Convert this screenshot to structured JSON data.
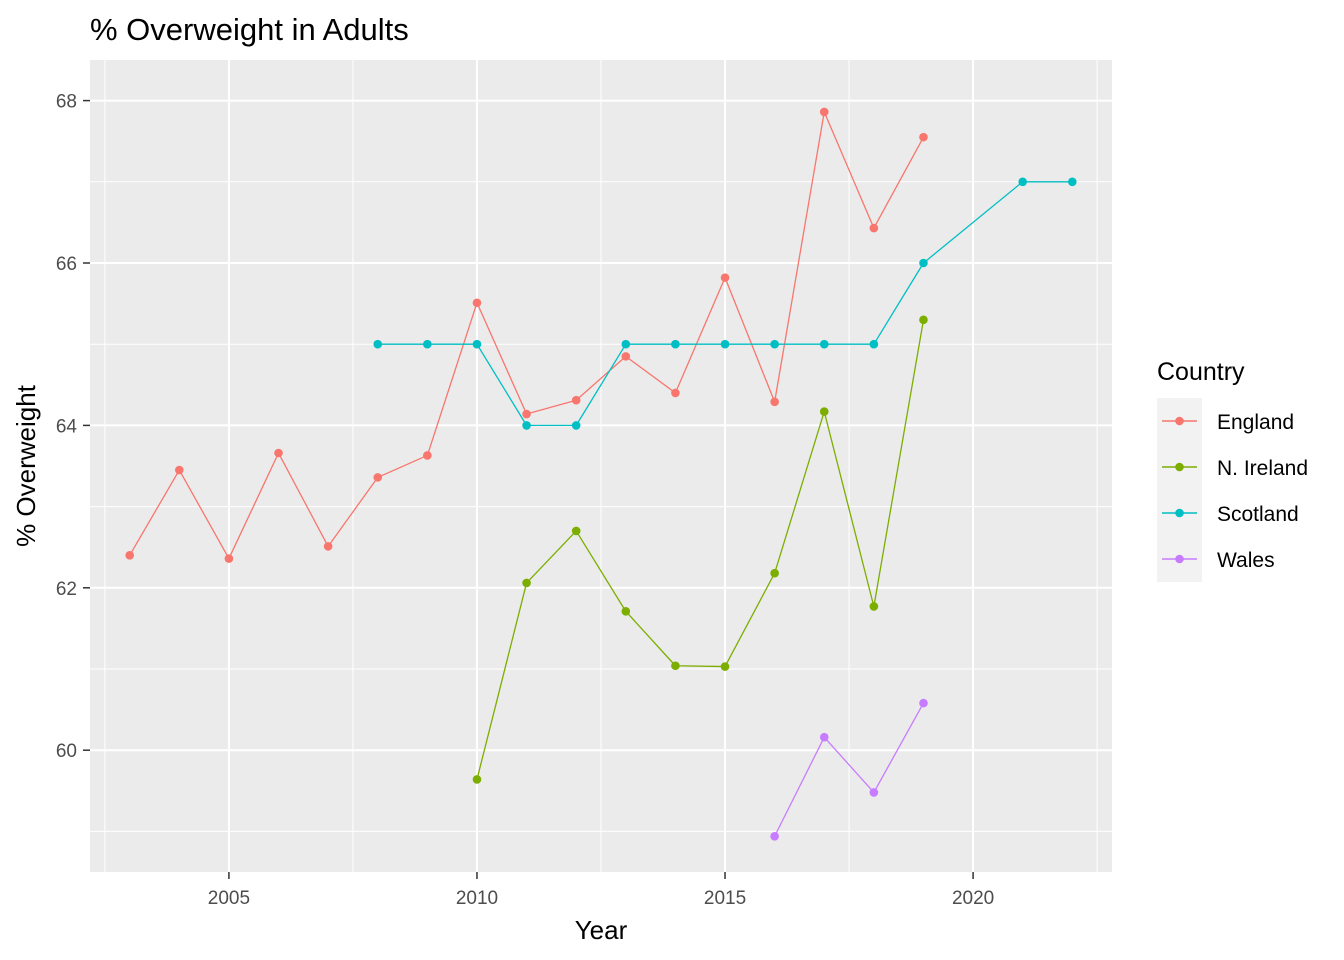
{
  "chart_data": {
    "type": "line",
    "title": "% Overweight in Adults",
    "xlabel": "Year",
    "ylabel": "% Overweight",
    "xlim": [
      2002.2,
      2022.8
    ],
    "ylim": [
      58.5,
      68.5
    ],
    "x_ticks": [
      2005,
      2010,
      2015,
      2020
    ],
    "y_ticks": [
      60,
      62,
      64,
      66,
      68
    ],
    "grid": true,
    "legend": {
      "title": "Country",
      "position": "right"
    },
    "series": [
      {
        "name": "England",
        "color": "#F8766D",
        "points": [
          {
            "x": 2003,
            "y": 62.4
          },
          {
            "x": 2004,
            "y": 63.45
          },
          {
            "x": 2005,
            "y": 62.36
          },
          {
            "x": 2006,
            "y": 63.66
          },
          {
            "x": 2007,
            "y": 62.51
          },
          {
            "x": 2008,
            "y": 63.36
          },
          {
            "x": 2009,
            "y": 63.63
          },
          {
            "x": 2010,
            "y": 65.51
          },
          {
            "x": 2011,
            "y": 64.14
          },
          {
            "x": 2012,
            "y": 64.31
          },
          {
            "x": 2013,
            "y": 64.85
          },
          {
            "x": 2014,
            "y": 64.4
          },
          {
            "x": 2015,
            "y": 65.82
          },
          {
            "x": 2016,
            "y": 64.29
          },
          {
            "x": 2017,
            "y": 67.86
          },
          {
            "x": 2018,
            "y": 66.43
          },
          {
            "x": 2019,
            "y": 67.55
          }
        ]
      },
      {
        "name": "N. Ireland",
        "color": "#7CAE00",
        "points": [
          {
            "x": 2010,
            "y": 59.64
          },
          {
            "x": 2011,
            "y": 62.06
          },
          {
            "x": 2012,
            "y": 62.7
          },
          {
            "x": 2013,
            "y": 61.71
          },
          {
            "x": 2014,
            "y": 61.04
          },
          {
            "x": 2015,
            "y": 61.03
          },
          {
            "x": 2016,
            "y": 62.18
          },
          {
            "x": 2017,
            "y": 64.17
          },
          {
            "x": 2018,
            "y": 61.77
          },
          {
            "x": 2019,
            "y": 65.3
          }
        ]
      },
      {
        "name": "Scotland",
        "color": "#00BFC4",
        "points": [
          {
            "x": 2008,
            "y": 65
          },
          {
            "x": 2009,
            "y": 65
          },
          {
            "x": 2010,
            "y": 65
          },
          {
            "x": 2011,
            "y": 64
          },
          {
            "x": 2012,
            "y": 64
          },
          {
            "x": 2013,
            "y": 65
          },
          {
            "x": 2014,
            "y": 65
          },
          {
            "x": 2015,
            "y": 65
          },
          {
            "x": 2016,
            "y": 65
          },
          {
            "x": 2017,
            "y": 65
          },
          {
            "x": 2018,
            "y": 65
          },
          {
            "x": 2019,
            "y": 66
          },
          {
            "x": 2021,
            "y": 67
          },
          {
            "x": 2022,
            "y": 67
          }
        ]
      },
      {
        "name": "Wales",
        "color": "#C77CFF",
        "points": [
          {
            "x": 2016,
            "y": 58.94
          },
          {
            "x": 2017,
            "y": 60.16
          },
          {
            "x": 2018,
            "y": 59.48
          },
          {
            "x": 2019,
            "y": 60.58
          }
        ]
      }
    ]
  }
}
